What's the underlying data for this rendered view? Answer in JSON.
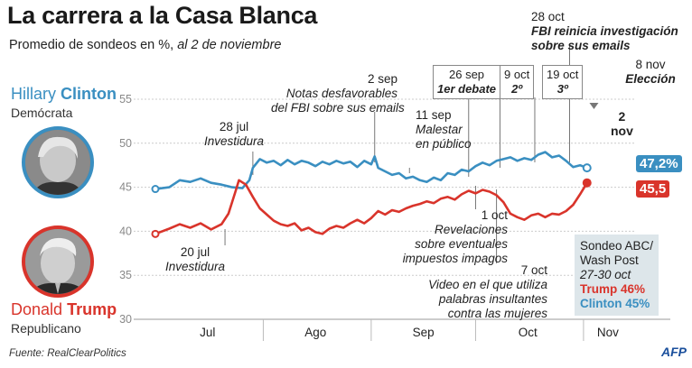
{
  "header": {
    "title": "La carrera a la Casa Blanca",
    "subtitle_main": "Promedio de sondeos en %,",
    "subtitle_date": " al 2 de noviembre"
  },
  "clinton": {
    "first": "Hillary",
    "last": "Clinton",
    "party": "Demócrata",
    "color": "#3a8fc1",
    "final_label": "47,2%"
  },
  "trump": {
    "first": "Donald",
    "last": "Trump",
    "party": "Republicano",
    "color": "#d9342b",
    "final_label": "45,5"
  },
  "annotations": {
    "dem_conv_date": "28 jul",
    "dem_conv_text": "Investidura",
    "rep_conv_date": "20 jul",
    "rep_conv_text": "Investidura",
    "fbi_note_date": "2 sep",
    "fbi_note_l1": "Notas desfavorables",
    "fbi_note_l2": "del FBI sobre sus emails",
    "ill_date": "11 sep",
    "ill_l1": "Malestar",
    "ill_l2": "en público",
    "tax_date": "1 oct",
    "tax_l1": "Revelaciones",
    "tax_l2": "sobre eventuales",
    "tax_l3": "impuestos impagos",
    "video_date": "7 oct",
    "video_l1": "Video en el que utiliza",
    "video_l2": "palabras insultantes",
    "video_l3": "contra las mujeres",
    "fbi_reopen_date": "28 oct",
    "fbi_reopen_l1": "FBI reinicia investigación",
    "fbi_reopen_l2": "sobre sus emails",
    "election_date": "8 nov",
    "election_text": "Elección",
    "latest_l1": "2",
    "latest_l2": "nov"
  },
  "debates": [
    {
      "date": "26 sep",
      "label": "1er debate"
    },
    {
      "date": "9 oct",
      "label": "2º"
    },
    {
      "date": "19 oct",
      "label": "3º"
    }
  ],
  "poll_box": {
    "l1": "Sondeo ABC/",
    "l2": "Wash Post",
    "l3": "27-30 oct",
    "trump": "Trump  46%",
    "clinton": "Clinton 45%"
  },
  "footer": {
    "source": "Fuente: RealClearPolitics",
    "logo": "AFP"
  },
  "chart_data": {
    "type": "line",
    "ylim": [
      30,
      55
    ],
    "yticks": [
      30,
      35,
      40,
      45,
      50,
      55
    ],
    "xticks": [
      {
        "day": 15,
        "label": "Jul"
      },
      {
        "day": 46,
        "label": "Ago"
      },
      {
        "day": 77,
        "label": "Sep"
      },
      {
        "day": 107,
        "label": "Oct"
      },
      {
        "day": 130,
        "label": "Nov"
      }
    ],
    "x_domain": [
      0,
      136
    ],
    "grid": true,
    "series": [
      {
        "name": "Clinton",
        "x": [
          0,
          4,
          7,
          10,
          13,
          16,
          19,
          22,
          25,
          27,
          28,
          30,
          32,
          34,
          36,
          38,
          40,
          42,
          44,
          46,
          48,
          50,
          52,
          54,
          56,
          58,
          60,
          62,
          63,
          64,
          66,
          68,
          70,
          72,
          74,
          76,
          78,
          80,
          82,
          84,
          86,
          88,
          90,
          92,
          94,
          96,
          98,
          100,
          102,
          104,
          106,
          108,
          110,
          112,
          114,
          116,
          118,
          120,
          122,
          124
        ],
        "y": [
          44.8,
          45.0,
          45.8,
          45.6,
          46.0,
          45.5,
          45.3,
          45.0,
          44.9,
          45.8,
          47.2,
          48.2,
          47.8,
          48.0,
          47.5,
          48.1,
          47.6,
          48.0,
          47.8,
          47.4,
          47.9,
          47.6,
          48.0,
          47.7,
          47.9,
          47.3,
          48.0,
          47.6,
          48.5,
          47.2,
          46.8,
          46.4,
          46.6,
          46.0,
          46.2,
          45.8,
          45.6,
          46.1,
          45.8,
          46.6,
          46.4,
          47.0,
          46.8,
          47.4,
          47.8,
          47.5,
          48.0,
          48.2,
          48.4,
          48.0,
          48.3,
          48.1,
          48.7,
          49.0,
          48.4,
          48.6,
          48.0,
          47.3,
          47.5,
          47.2
        ]
      },
      {
        "name": "Trump",
        "x": [
          0,
          4,
          7,
          10,
          13,
          16,
          19,
          21,
          23,
          24,
          26,
          28,
          30,
          32,
          34,
          36,
          38,
          40,
          42,
          44,
          46,
          48,
          50,
          52,
          54,
          56,
          58,
          60,
          62,
          64,
          66,
          68,
          70,
          72,
          74,
          76,
          78,
          80,
          82,
          84,
          86,
          88,
          90,
          92,
          94,
          96,
          98,
          100,
          102,
          104,
          106,
          108,
          110,
          112,
          114,
          116,
          118,
          120,
          122,
          124
        ],
        "y": [
          39.7,
          40.3,
          40.8,
          40.4,
          40.9,
          40.2,
          40.8,
          42.0,
          44.5,
          45.8,
          45.3,
          43.9,
          42.6,
          41.9,
          41.2,
          40.8,
          40.6,
          40.9,
          40.1,
          40.4,
          39.9,
          39.7,
          40.3,
          40.6,
          40.4,
          40.9,
          41.3,
          40.9,
          41.5,
          42.3,
          41.9,
          42.4,
          42.2,
          42.6,
          42.9,
          43.1,
          43.4,
          43.2,
          43.7,
          43.9,
          43.6,
          44.2,
          44.6,
          44.3,
          44.7,
          44.5,
          44.1,
          43.3,
          42.0,
          41.6,
          41.3,
          41.8,
          42.0,
          41.6,
          42.0,
          41.9,
          42.3,
          43.0,
          44.2,
          45.5
        ]
      }
    ]
  }
}
